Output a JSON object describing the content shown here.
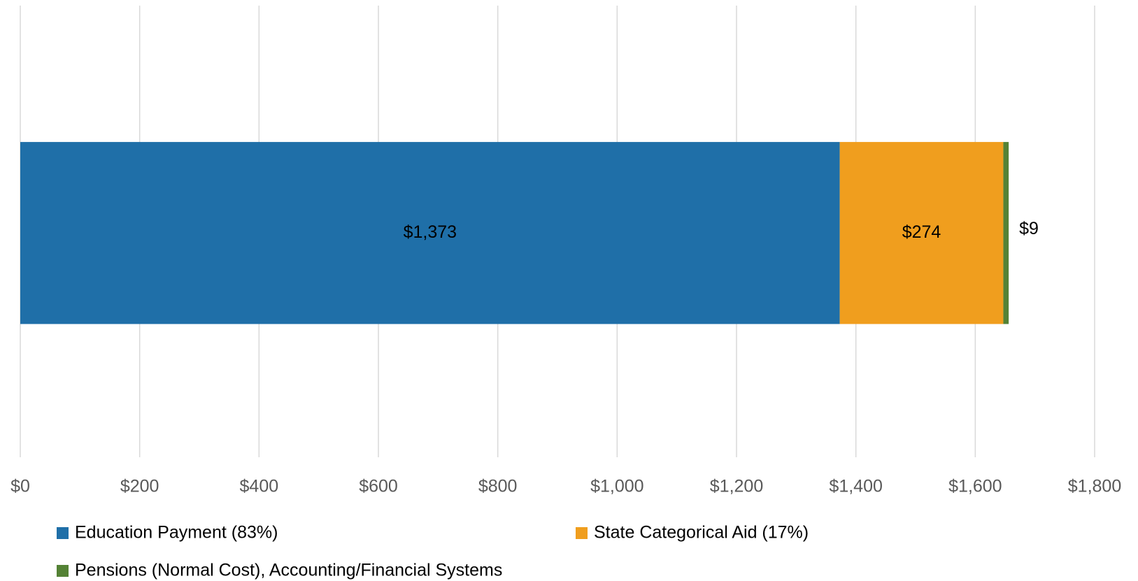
{
  "chart_data": {
    "type": "stacked_bar_horizontal",
    "categories": [
      null
    ],
    "series": [
      {
        "name": "Education Payment (83%)",
        "color": "#1f6fa8",
        "values": [
          1373
        ],
        "value_labels": [
          "$1,373"
        ]
      },
      {
        "name": "State Categorical Aid (17%)",
        "color": "#f09e1e",
        "values": [
          274
        ],
        "value_labels": [
          "$274"
        ]
      },
      {
        "name": "Pensions (Normal Cost), Accounting/Financial Systems",
        "color": "#548235",
        "values": [
          9
        ],
        "value_labels": [
          "$9"
        ]
      }
    ],
    "xlim": [
      0,
      1800
    ],
    "xticks": [
      {
        "value": 0,
        "label": "$0"
      },
      {
        "value": 200,
        "label": "$200"
      },
      {
        "value": 400,
        "label": "$400"
      },
      {
        "value": 600,
        "label": "$600"
      },
      {
        "value": 800,
        "label": "$800"
      },
      {
        "value": 1000,
        "label": "$1,000"
      },
      {
        "value": 1200,
        "label": "$1,200"
      },
      {
        "value": 1400,
        "label": "$1,400"
      },
      {
        "value": 1600,
        "label": "$1,600"
      },
      {
        "value": 1800,
        "label": "$1,800"
      }
    ],
    "grid": true,
    "legend": "bottom"
  }
}
